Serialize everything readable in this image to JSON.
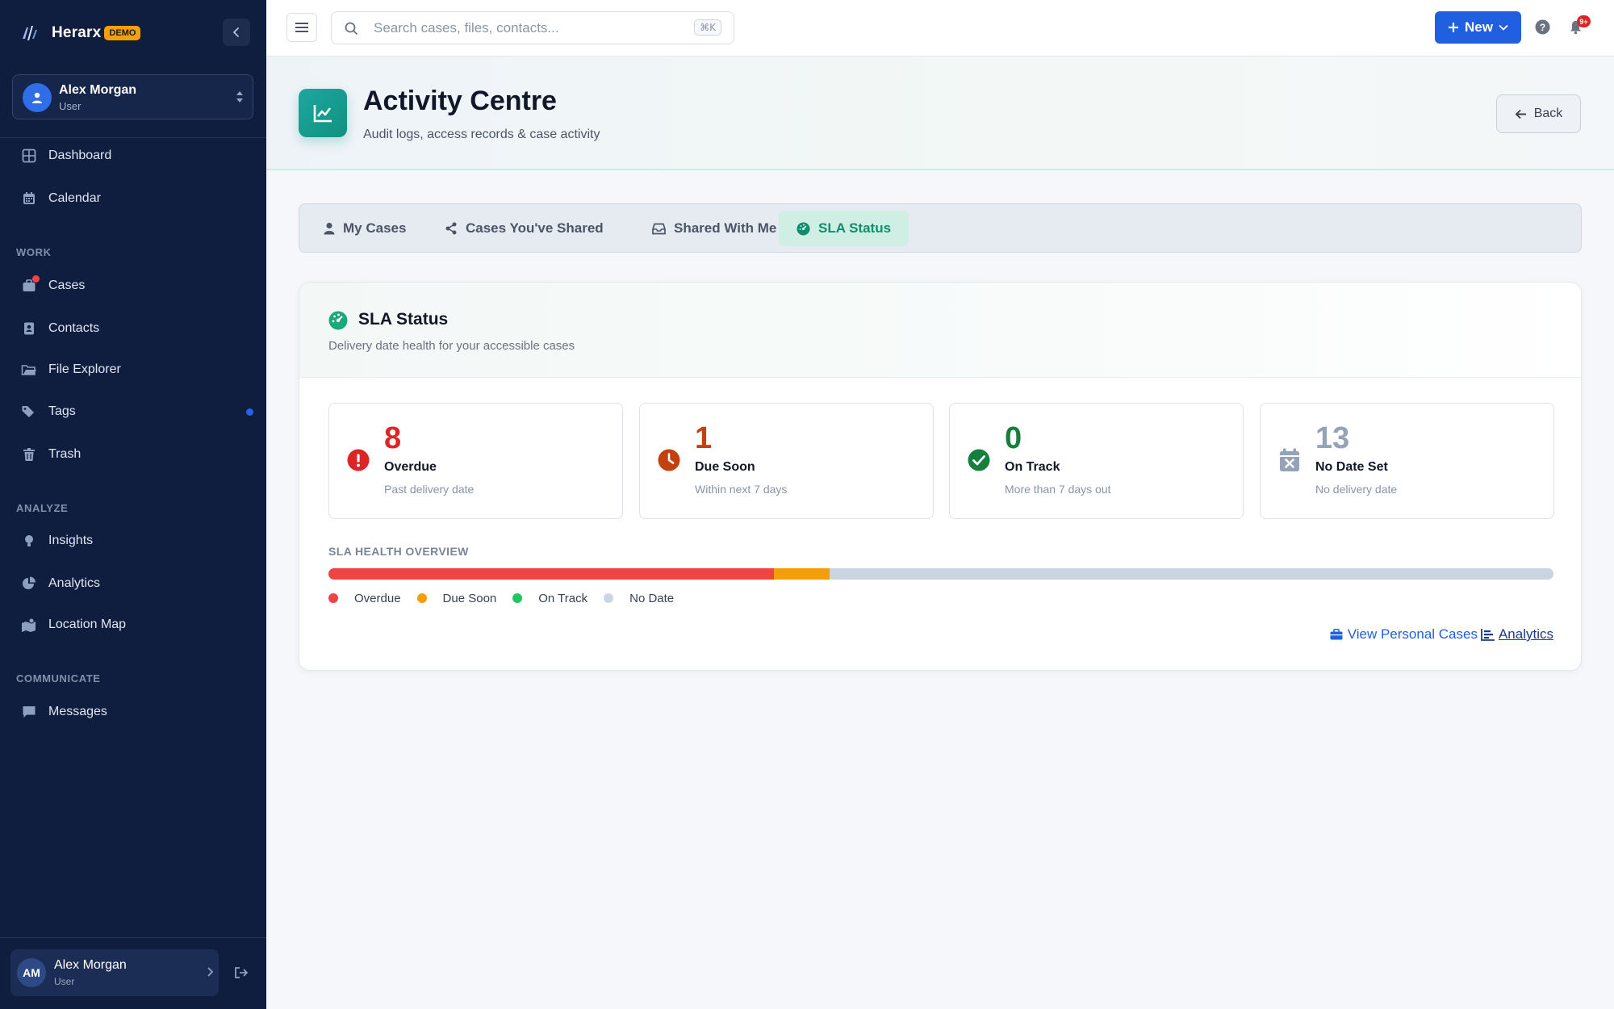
{
  "brand": {
    "name": "Herarx",
    "badge": "DEMO"
  },
  "user": {
    "name": "Alex Morgan",
    "role": "User",
    "initials": "AM"
  },
  "nav": {
    "primary": [
      {
        "label": "Dashboard",
        "icon": "dashboard-icon"
      },
      {
        "label": "Calendar",
        "icon": "calendar-icon"
      }
    ],
    "sections": [
      {
        "title": "WORK",
        "items": [
          {
            "label": "Cases",
            "icon": "briefcase-icon"
          },
          {
            "label": "Contacts",
            "icon": "contacts-icon"
          },
          {
            "label": "File Explorer",
            "icon": "folder-icon"
          },
          {
            "label": "Tags",
            "icon": "tag-icon"
          },
          {
            "label": "Trash",
            "icon": "trash-icon"
          }
        ]
      },
      {
        "title": "ANALYZE",
        "items": [
          {
            "label": "Insights",
            "icon": "lightbulb-icon"
          },
          {
            "label": "Analytics",
            "icon": "pie-chart-icon"
          },
          {
            "label": "Location Map",
            "icon": "map-icon"
          }
        ]
      },
      {
        "title": "COMMUNICATE",
        "items": [
          {
            "label": "Messages",
            "icon": "message-icon"
          }
        ]
      }
    ]
  },
  "topbar": {
    "search_placeholder": "Search cases, files, contacts...",
    "shortcut": "⌘K",
    "new_label": "New",
    "notification_count": "9+"
  },
  "header": {
    "title": "Activity Centre",
    "subtitle": "Audit logs, access records & case activity",
    "back_label": "Back"
  },
  "tabs": [
    {
      "label": "My Cases",
      "icon": "user-icon",
      "active": false
    },
    {
      "label": "Cases You've Shared",
      "icon": "share-icon",
      "active": false
    },
    {
      "label": "Shared With Me",
      "icon": "inbox-icon",
      "active": false
    },
    {
      "label": "SLA Status",
      "icon": "gauge-icon",
      "active": true
    }
  ],
  "sla": {
    "title": "SLA Status",
    "subtitle": "Delivery date health for your accessible cases",
    "stats": [
      {
        "value": "8",
        "label": "Overdue",
        "sub": "Past delivery date",
        "color": "#dc2626",
        "icon": "alert-icon"
      },
      {
        "value": "1",
        "label": "Due Soon",
        "sub": "Within next 7 days",
        "color": "#c2410c",
        "icon": "clock-icon"
      },
      {
        "value": "0",
        "label": "On Track",
        "sub": "More than 7 days out",
        "color": "#15803d",
        "icon": "check-circle-icon"
      },
      {
        "value": "13",
        "label": "No Date Set",
        "sub": "No delivery date",
        "color": "#94a3b8",
        "icon": "calendar-x-icon"
      }
    ],
    "overview_label": "SLA HEALTH OVERVIEW",
    "distribution": [
      {
        "label": "Overdue",
        "count": 8,
        "color": "#ef4444"
      },
      {
        "label": "Due Soon",
        "count": 1,
        "color": "#f59e0b"
      },
      {
        "label": "On Track",
        "count": 0,
        "color": "#22c55e"
      },
      {
        "label": "No Date",
        "count": 13,
        "color": "#cbd5e1"
      }
    ],
    "link_personal": "View Personal Cases",
    "link_analytics": "Analytics"
  }
}
